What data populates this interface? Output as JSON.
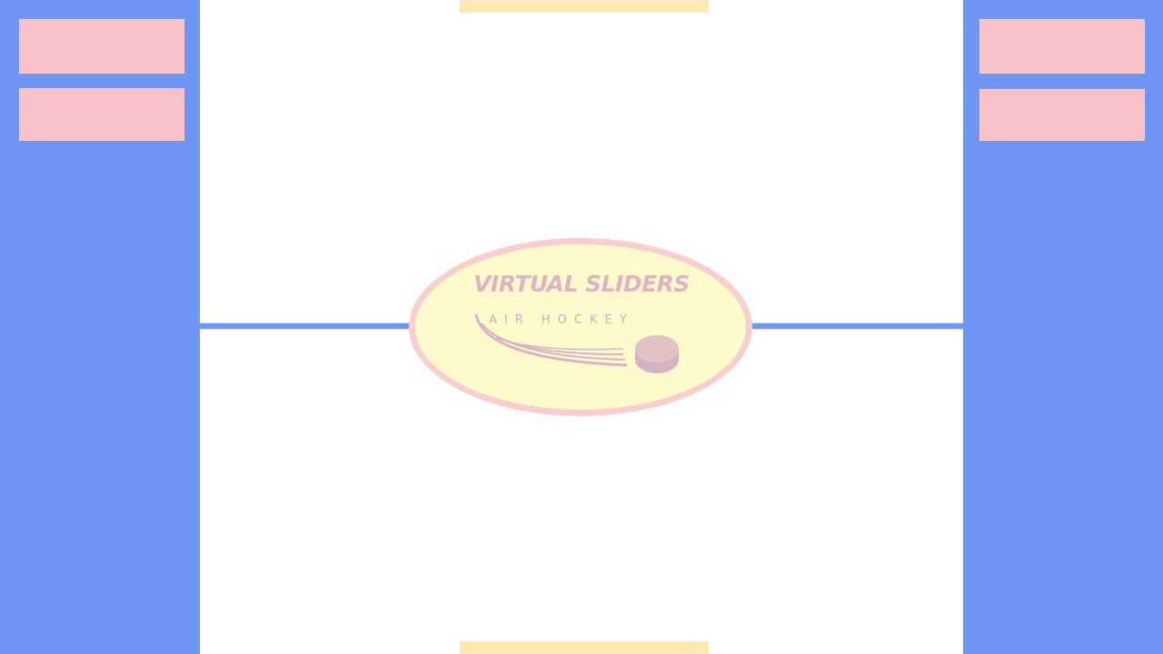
{
  "game": {
    "logo_title": "VIRTUAL SLIDERS",
    "logo_subtitle": "AIR HOCKEY"
  },
  "colors": {
    "side_panel": "#7096f5",
    "side_button": "#f8c1c8",
    "rink": "#ffffff",
    "goal": "#fdeaae",
    "center_circle_fill": "#fffacb",
    "center_circle_ring": "#f8cfce",
    "logo_text": "#e0b3c4"
  }
}
